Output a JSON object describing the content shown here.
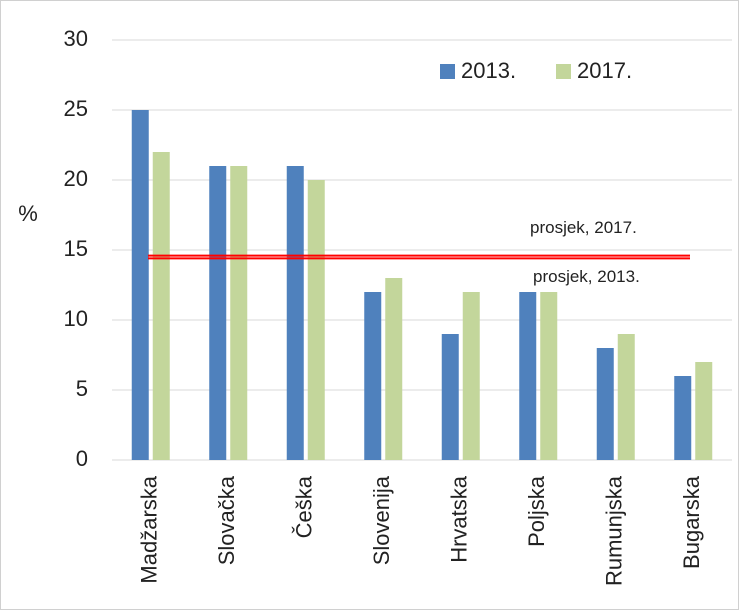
{
  "chart_data": {
    "type": "bar",
    "categories": [
      "Madžarska",
      "Slovačka",
      "Češka",
      "Slovenija",
      "Hrvatska",
      "Poljska",
      "Rumunjska",
      "Bugarska"
    ],
    "series": [
      {
        "name": "2013.",
        "color": "#4f81bd",
        "values": [
          25,
          21,
          21,
          12,
          9,
          12,
          8,
          6
        ]
      },
      {
        "name": "2017.",
        "color": "#c3d69b",
        "values": [
          22,
          21,
          20,
          13,
          12,
          12,
          9,
          7
        ]
      }
    ],
    "y_label": "%",
    "ylim": [
      0,
      30
    ],
    "yticks": [
      0,
      5,
      10,
      15,
      20,
      25,
      30
    ],
    "grid": true,
    "reference_lines": [
      {
        "label": "prosjek, 2017.",
        "value": 14.6,
        "color": "#ff0000"
      },
      {
        "label": "prosjek, 2013.",
        "value": 14.4,
        "color": "#ff0000"
      }
    ]
  }
}
